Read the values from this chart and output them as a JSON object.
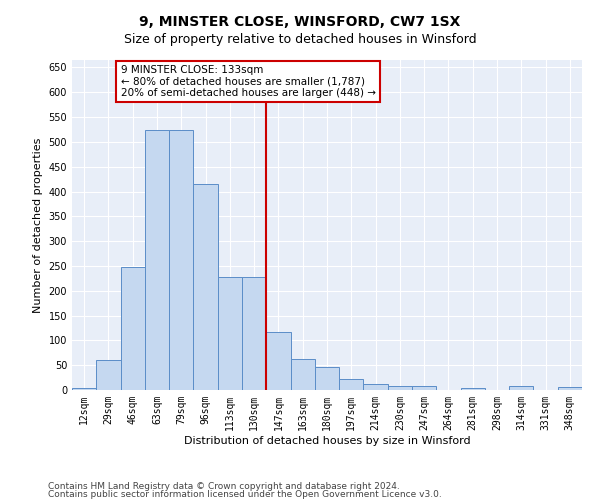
{
  "title": "9, MINSTER CLOSE, WINSFORD, CW7 1SX",
  "subtitle": "Size of property relative to detached houses in Winsford",
  "xlabel": "Distribution of detached houses by size in Winsford",
  "ylabel": "Number of detached properties",
  "categories": [
    "12sqm",
    "29sqm",
    "46sqm",
    "63sqm",
    "79sqm",
    "96sqm",
    "113sqm",
    "130sqm",
    "147sqm",
    "163sqm",
    "180sqm",
    "197sqm",
    "214sqm",
    "230sqm",
    "247sqm",
    "264sqm",
    "281sqm",
    "298sqm",
    "314sqm",
    "331sqm",
    "348sqm"
  ],
  "values": [
    5,
    60,
    248,
    523,
    523,
    415,
    228,
    228,
    117,
    63,
    47,
    22,
    13,
    8,
    8,
    0,
    5,
    0,
    8,
    0,
    7
  ],
  "bar_color": "#c5d8f0",
  "bar_edge_color": "#5b8dc8",
  "vline_color": "#cc0000",
  "annotation_text": "9 MINSTER CLOSE: 133sqm\n← 80% of detached houses are smaller (1,787)\n20% of semi-detached houses are larger (448) →",
  "annotation_box_color": "#ffffff",
  "annotation_box_edge": "#cc0000",
  "ylim": [
    0,
    665
  ],
  "yticks": [
    0,
    50,
    100,
    150,
    200,
    250,
    300,
    350,
    400,
    450,
    500,
    550,
    600,
    650
  ],
  "bg_color": "#e8eef8",
  "footer1": "Contains HM Land Registry data © Crown copyright and database right 2024.",
  "footer2": "Contains public sector information licensed under the Open Government Licence v3.0.",
  "title_fontsize": 10,
  "subtitle_fontsize": 9,
  "label_fontsize": 8,
  "tick_fontsize": 7,
  "footer_fontsize": 6.5,
  "annot_fontsize": 7.5
}
